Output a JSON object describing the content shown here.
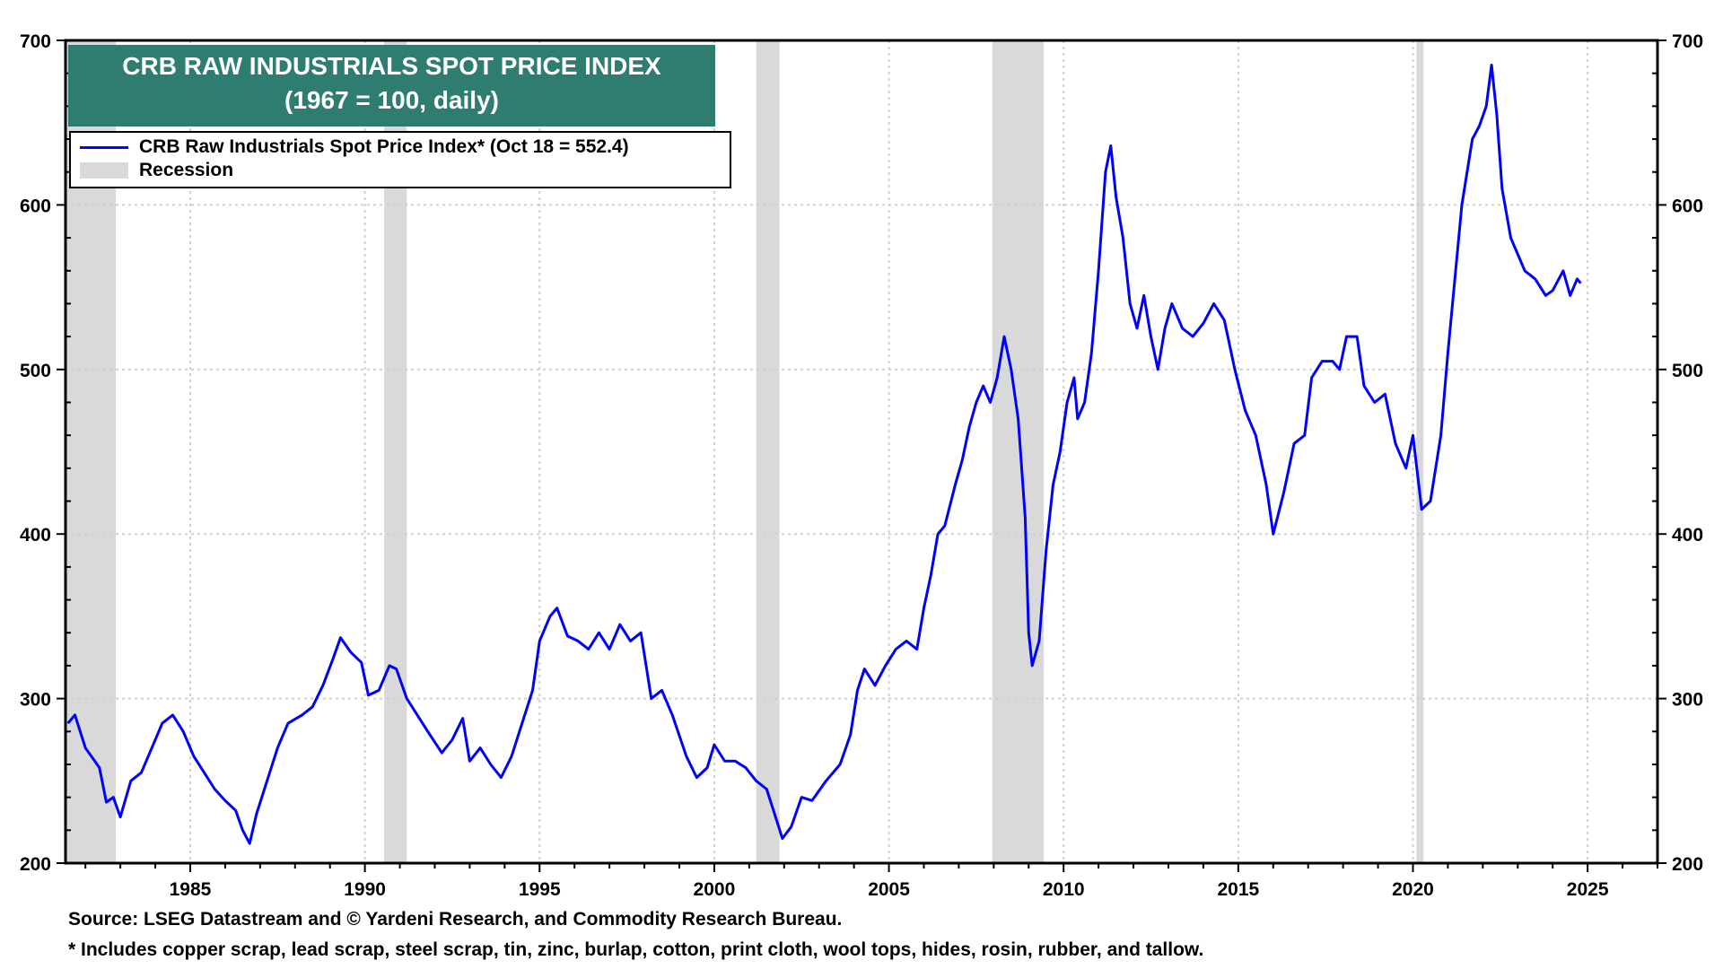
{
  "chart_data": {
    "type": "line",
    "title": "CRB RAW INDUSTRIALS SPOT PRICE INDEX",
    "subtitle": "(1967 = 100, daily)",
    "xlabel": "",
    "ylabel": "",
    "xlim": [
      1981.43,
      2027.0
    ],
    "ylim": [
      200,
      700
    ],
    "y_ticks": [
      200,
      300,
      400,
      500,
      600,
      700
    ],
    "x_ticks": [
      1985,
      1990,
      1995,
      2000,
      2005,
      2010,
      2015,
      2020,
      2025
    ],
    "grid": true,
    "legend_position": "top-left",
    "legend": [
      {
        "label": "CRB Raw Industrials Spot Price Index* (Oct 18 = 552.4)",
        "type": "line",
        "color": "#0000ff"
      },
      {
        "label": "Recession",
        "type": "box",
        "color": "#d9d9d9"
      }
    ],
    "recessions": [
      {
        "start": 1981.43,
        "end": 1982.87
      },
      {
        "start": 1990.55,
        "end": 1991.2
      },
      {
        "start": 2001.2,
        "end": 2001.87
      },
      {
        "start": 2007.96,
        "end": 2009.43
      },
      {
        "start": 2020.1,
        "end": 2020.3
      }
    ],
    "series": [
      {
        "name": "CRB Raw Industrials Spot Price Index",
        "color": "#0000ff",
        "x": [
          1981.5,
          1981.7,
          1982.0,
          1982.4,
          1982.6,
          1982.8,
          1983.0,
          1983.3,
          1983.6,
          1983.9,
          1984.2,
          1984.5,
          1984.8,
          1985.1,
          1985.4,
          1985.7,
          1986.0,
          1986.3,
          1986.5,
          1986.7,
          1986.9,
          1987.2,
          1987.5,
          1987.8,
          1988.2,
          1988.5,
          1988.8,
          1989.1,
          1989.3,
          1989.6,
          1989.9,
          1990.1,
          1990.4,
          1990.7,
          1990.9,
          1991.2,
          1991.5,
          1991.8,
          1992.2,
          1992.5,
          1992.8,
          1993.0,
          1993.3,
          1993.6,
          1993.9,
          1994.2,
          1994.5,
          1994.8,
          1995.0,
          1995.3,
          1995.5,
          1995.8,
          1996.1,
          1996.4,
          1996.7,
          1997.0,
          1997.3,
          1997.6,
          1997.9,
          1998.2,
          1998.5,
          1998.8,
          1999.2,
          1999.5,
          1999.8,
          2000.0,
          2000.3,
          2000.6,
          2000.9,
          2001.2,
          2001.5,
          2001.8,
          2001.95,
          2002.2,
          2002.5,
          2002.8,
          2003.2,
          2003.6,
          2003.9,
          2004.1,
          2004.3,
          2004.6,
          2004.9,
          2005.2,
          2005.5,
          2005.8,
          2006.0,
          2006.2,
          2006.4,
          2006.6,
          2006.9,
          2007.1,
          2007.3,
          2007.5,
          2007.7,
          2007.9,
          2008.1,
          2008.3,
          2008.5,
          2008.7,
          2008.9,
          2009.0,
          2009.1,
          2009.3,
          2009.5,
          2009.7,
          2009.9,
          2010.1,
          2010.3,
          2010.4,
          2010.6,
          2010.8,
          2011.0,
          2011.2,
          2011.35,
          2011.5,
          2011.7,
          2011.9,
          2012.1,
          2012.3,
          2012.5,
          2012.7,
          2012.9,
          2013.1,
          2013.4,
          2013.7,
          2014.0,
          2014.3,
          2014.6,
          2014.9,
          2015.2,
          2015.5,
          2015.8,
          2016.0,
          2016.3,
          2016.6,
          2016.9,
          2017.1,
          2017.4,
          2017.7,
          2017.9,
          2018.1,
          2018.4,
          2018.6,
          2018.9,
          2019.2,
          2019.5,
          2019.8,
          2020.0,
          2020.25,
          2020.5,
          2020.8,
          2021.0,
          2021.2,
          2021.4,
          2021.7,
          2021.9,
          2022.1,
          2022.25,
          2022.4,
          2022.55,
          2022.8,
          2023.0,
          2023.2,
          2023.5,
          2023.8,
          2024.0,
          2024.3,
          2024.5,
          2024.7,
          2024.8
        ],
        "values": [
          285,
          290,
          270,
          258,
          237,
          240,
          228,
          250,
          255,
          270,
          285,
          290,
          280,
          265,
          255,
          245,
          238,
          232,
          220,
          212,
          230,
          250,
          270,
          285,
          290,
          295,
          308,
          325,
          337,
          328,
          322,
          302,
          305,
          320,
          318,
          300,
          290,
          280,
          267,
          275,
          288,
          262,
          270,
          260,
          252,
          265,
          285,
          305,
          335,
          350,
          355,
          338,
          335,
          330,
          340,
          330,
          345,
          335,
          340,
          300,
          305,
          290,
          265,
          252,
          258,
          272,
          262,
          262,
          258,
          250,
          245,
          225,
          215,
          222,
          240,
          238,
          250,
          260,
          278,
          305,
          318,
          308,
          320,
          330,
          335,
          330,
          355,
          375,
          400,
          405,
          430,
          445,
          465,
          480,
          490,
          480,
          495,
          520,
          500,
          470,
          410,
          340,
          320,
          335,
          390,
          430,
          450,
          480,
          495,
          470,
          480,
          510,
          560,
          620,
          636,
          605,
          580,
          540,
          525,
          545,
          520,
          500,
          525,
          540,
          525,
          520,
          528,
          540,
          530,
          500,
          475,
          460,
          430,
          400,
          425,
          455,
          460,
          495,
          505,
          505,
          500,
          520,
          520,
          490,
          480,
          485,
          455,
          440,
          460,
          415,
          420,
          460,
          510,
          555,
          600,
          640,
          648,
          660,
          685,
          655,
          610,
          580,
          570,
          560,
          555,
          545,
          548,
          560,
          545,
          555,
          552.4
        ]
      }
    ]
  },
  "footer": {
    "source": "Source: LSEG Datastream and © Yardeni Research, and Commodity Research Bureau.",
    "note": "* Includes copper scrap, lead scrap, steel scrap, tin, zinc, burlap, cotton, print cloth, wool tops, hides, rosin, rubber, and tallow."
  }
}
